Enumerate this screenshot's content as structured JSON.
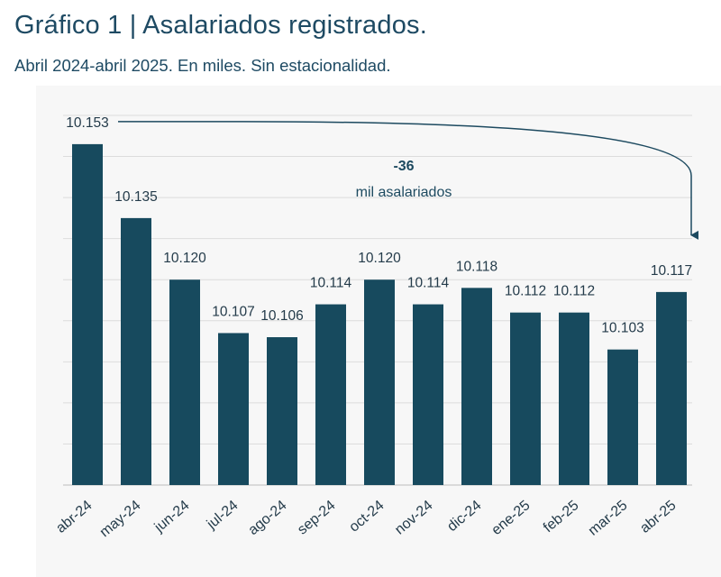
{
  "chart_data": {
    "type": "bar",
    "title": "Gráfico 1 | Asalariados registrados.",
    "subtitle": "Abril 2024-abril 2025. En miles. Sin estacionalidad.",
    "categories": [
      "abr-24",
      "may-24",
      "jun-24",
      "jul-24",
      "ago-24",
      "sep-24",
      "oct-24",
      "nov-24",
      "dic-24",
      "ene-25",
      "feb-25",
      "mar-25",
      "abr-25"
    ],
    "values": [
      10153,
      10135,
      10120,
      10107,
      10106,
      10114,
      10120,
      10114,
      10118,
      10112,
      10112,
      10103,
      10117
    ],
    "labels": [
      "10.153",
      "10.135",
      "10.120",
      "10.107",
      "10.106",
      "10.114",
      "10.120",
      "10.114",
      "10.118",
      "10.112",
      "10.112",
      "10.103",
      "10.117"
    ],
    "ylim": [
      10070,
      10160
    ],
    "xlabel": "",
    "ylabel": "",
    "grid": true,
    "bar_color": "#174a5e",
    "annotation": {
      "value": "-36",
      "text": "mil asalariados",
      "from": "abr-24",
      "to": "abr-25"
    }
  }
}
